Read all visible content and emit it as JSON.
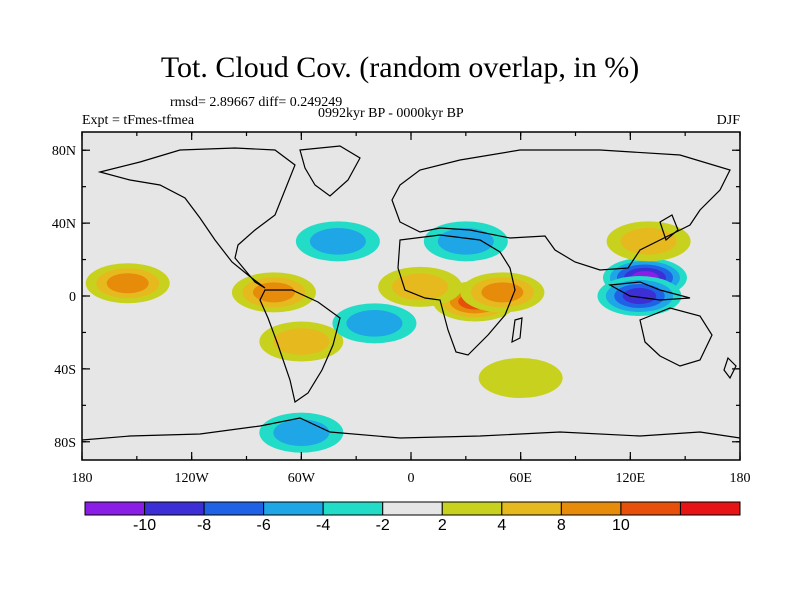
{
  "title": "Tot. Cloud Cov. (random overlap, in %)",
  "stats": "rmsd= 2.89667 diff= 0.249249",
  "experiment": "Expt = tFmes-tfmea",
  "period": "0992kyr BP - 0000kyr BP",
  "season": "DJF",
  "lat_labels": [
    "80N",
    "40N",
    "0",
    "40S",
    "80S"
  ],
  "lon_labels": [
    "180",
    "120W",
    "60W",
    "0",
    "60E",
    "120E",
    "180"
  ],
  "colorbar": {
    "labels": [
      "-10",
      "-8",
      "-6",
      "-4",
      "-2",
      "2",
      "4",
      "8",
      "10"
    ],
    "colors": [
      "#8a1ee6",
      "#3c2fd6",
      "#1f62e6",
      "#1ea6e6",
      "#23dcc8",
      "#e6e6e6",
      "#c8d21e",
      "#e6b91e",
      "#e68c0a",
      "#e6500a",
      "#e61414"
    ]
  },
  "chart_data": {
    "type": "heatmap",
    "projection": "cylindrical equidistant",
    "xlim": [
      -180,
      180
    ],
    "ylim": [
      -90,
      90
    ],
    "levels": [
      -10,
      -8,
      -6,
      -4,
      -2,
      2,
      4,
      8,
      10
    ],
    "regions": [
      {
        "name": "central Africa",
        "lon": 35,
        "lat": -3,
        "value": 10
      },
      {
        "name": "west Africa",
        "lon": 5,
        "lat": 5,
        "value": 7
      },
      {
        "name": "eastern Africa",
        "lon": 50,
        "lat": 2,
        "value": 9
      },
      {
        "name": "maritime continent",
        "lon": 128,
        "lat": 10,
        "value": -10
      },
      {
        "name": "Philippine sea",
        "lon": 125,
        "lat": 0,
        "value": -8
      },
      {
        "name": "tropical central Pacific",
        "lon": -155,
        "lat": 7,
        "value": 9
      },
      {
        "name": "northern South America",
        "lon": -75,
        "lat": 2,
        "value": 8
      },
      {
        "name": "southern South America",
        "lon": -60,
        "lat": -25,
        "value": 6
      },
      {
        "name": "south Atlantic",
        "lon": -20,
        "lat": -15,
        "value": -5
      },
      {
        "name": "north Atlantic",
        "lon": -40,
        "lat": 30,
        "value": -5
      },
      {
        "name": "Mediterranean",
        "lon": 30,
        "lat": 30,
        "value": -5
      },
      {
        "name": "north Pacific",
        "lon": 130,
        "lat": 30,
        "value": 6
      },
      {
        "name": "Antarctic coast",
        "lon": -60,
        "lat": -75,
        "value": -4
      },
      {
        "name": "southern ocean",
        "lon": 60,
        "lat": -45,
        "value": 3
      }
    ]
  }
}
